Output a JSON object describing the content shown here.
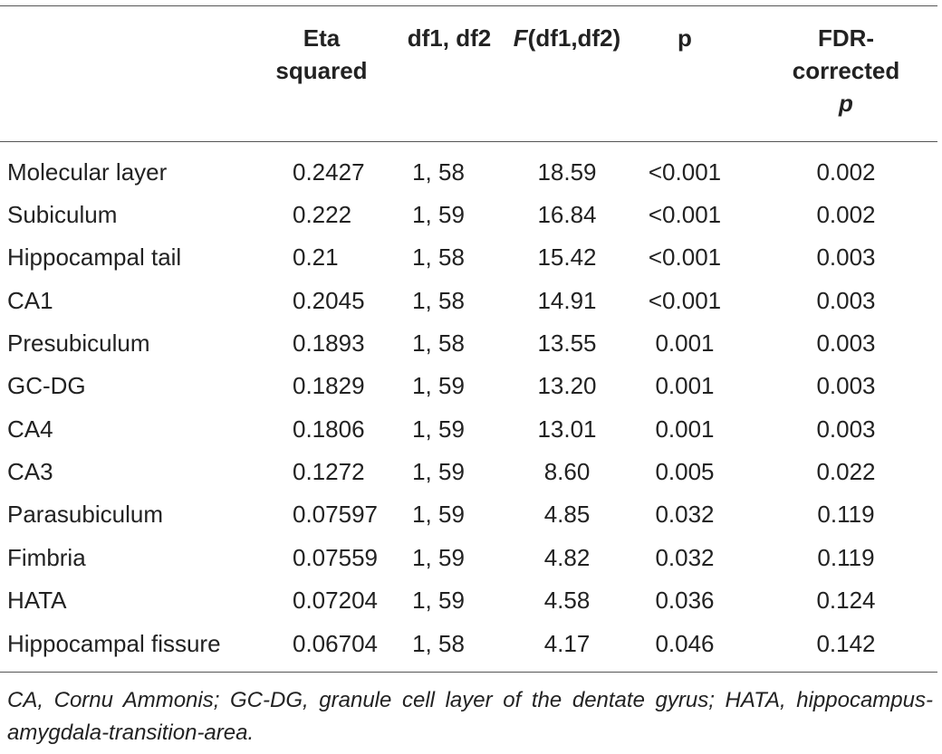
{
  "headers": {
    "eta": [
      "Eta",
      "squared"
    ],
    "df": "df1, df2",
    "f": {
      "italic": "F",
      "rest": "(df1,df2)"
    },
    "p": "p",
    "fdr": [
      "FDR-",
      "corrected",
      "p"
    ]
  },
  "rows": [
    {
      "name": "Molecular layer",
      "eta": "0.2427",
      "df": "1, 58",
      "f": "18.59",
      "p": "<0.001",
      "fdr": "0.002"
    },
    {
      "name": "Subiculum",
      "eta": "0.222",
      "df": "1, 59",
      "f": "16.84",
      "p": "<0.001",
      "fdr": "0.002"
    },
    {
      "name": "Hippocampal tail",
      "eta": "0.21",
      "df": "1, 58",
      "f": "15.42",
      "p": "<0.001",
      "fdr": "0.003"
    },
    {
      "name": "CA1",
      "eta": "0.2045",
      "df": "1, 58",
      "f": "14.91",
      "p": "<0.001",
      "fdr": "0.003"
    },
    {
      "name": "Presubiculum",
      "eta": "0.1893",
      "df": "1, 58",
      "f": "13.55",
      "p": "0.001",
      "fdr": "0.003"
    },
    {
      "name": "GC-DG",
      "eta": "0.1829",
      "df": "1, 59",
      "f": "13.20",
      "p": "0.001",
      "fdr": "0.003"
    },
    {
      "name": "CA4",
      "eta": "0.1806",
      "df": "1, 59",
      "f": "13.01",
      "p": "0.001",
      "fdr": "0.003"
    },
    {
      "name": "CA3",
      "eta": "0.1272",
      "df": "1, 59",
      "f": "8.60",
      "p": "0.005",
      "fdr": "0.022"
    },
    {
      "name": "Parasubiculum",
      "eta": "0.07597",
      "df": "1, 59",
      "f": "4.85",
      "p": "0.032",
      "fdr": "0.119"
    },
    {
      "name": "Fimbria",
      "eta": "0.07559",
      "df": "1, 59",
      "f": "4.82",
      "p": "0.032",
      "fdr": "0.119"
    },
    {
      "name": "HATA",
      "eta": "0.07204",
      "df": "1, 59",
      "f": "4.58",
      "p": "0.036",
      "fdr": "0.124"
    },
    {
      "name": "Hippocampal fissure",
      "eta": "0.06704",
      "df": "1, 58",
      "f": "4.17",
      "p": "0.046",
      "fdr": "0.142"
    }
  ],
  "footnote": "CA, Cornu Ammonis; GC-DG, granule cell layer of the dentate gyrus; HATA, hippocampus-amygdala-transition-area."
}
